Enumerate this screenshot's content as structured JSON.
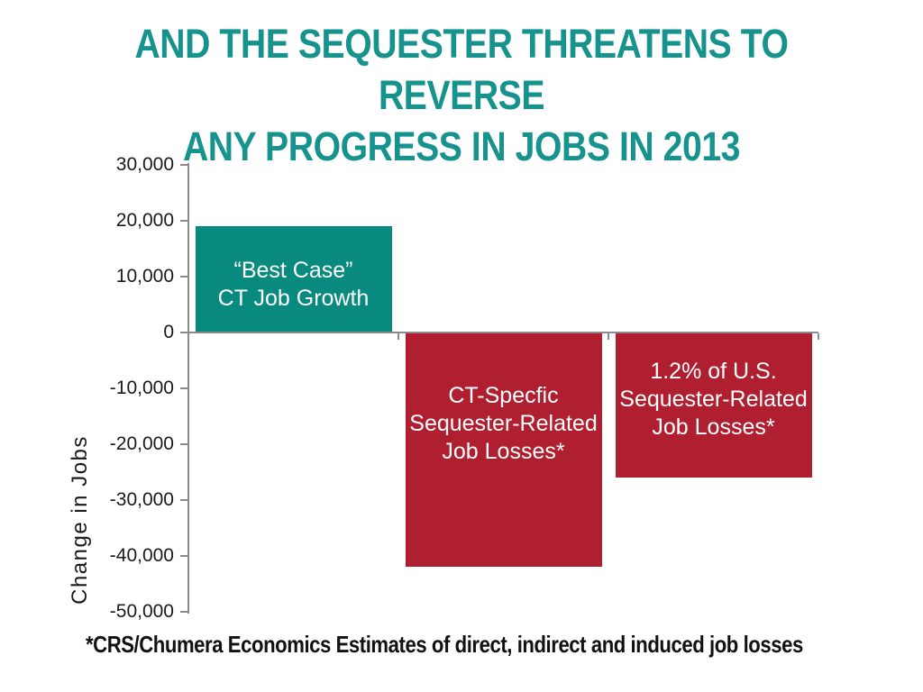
{
  "slide": {
    "title_line1": "AND THE SEQUESTER THREATENS TO REVERSE",
    "title_line2": "ANY PROGRESS IN JOBS IN 2013",
    "title_color": "#17938d",
    "background": "#ffffff",
    "footnote": "*CRS/Chumera Economics Estimates of direct, indirect and induced job losses"
  },
  "chart_data": {
    "type": "bar",
    "title": "",
    "xlabel": "",
    "ylabel": "Change in Jobs",
    "ylim": [
      -50000,
      30000
    ],
    "ytick_step": 10000,
    "ytick_labels": [
      "30,000",
      "20,000",
      "10,000",
      "0",
      "-10,000",
      "-20,000",
      "-30,000",
      "-40,000",
      "-50,000"
    ],
    "grid": false,
    "legend": "none",
    "axis_color": "#8c8c8c",
    "text_color": "#1a1a1a",
    "bar_label_color": "#ffffff",
    "categories": [
      "“Best Case” CT Job Growth",
      "CT-Specfic Sequester-Related Job Losses*",
      "1.2% of U.S. Sequester-Related Job Losses*"
    ],
    "series": [
      {
        "name": "Change in Jobs",
        "values": [
          19000,
          -42000,
          -26000
        ]
      }
    ],
    "bars": [
      {
        "label_lines": [
          "“Best Case”",
          "CT Job Growth"
        ],
        "value": 19000,
        "color": "#088b7e"
      },
      {
        "label_lines": [
          "CT-Specfic",
          "Sequester-Related",
          "Job Losses*"
        ],
        "value": -42000,
        "color": "#b01f30"
      },
      {
        "label_lines": [
          "1.2% of U.S.",
          "Sequester-Related",
          "Job Losses*"
        ],
        "value": -26000,
        "color": "#b01f30"
      }
    ]
  }
}
